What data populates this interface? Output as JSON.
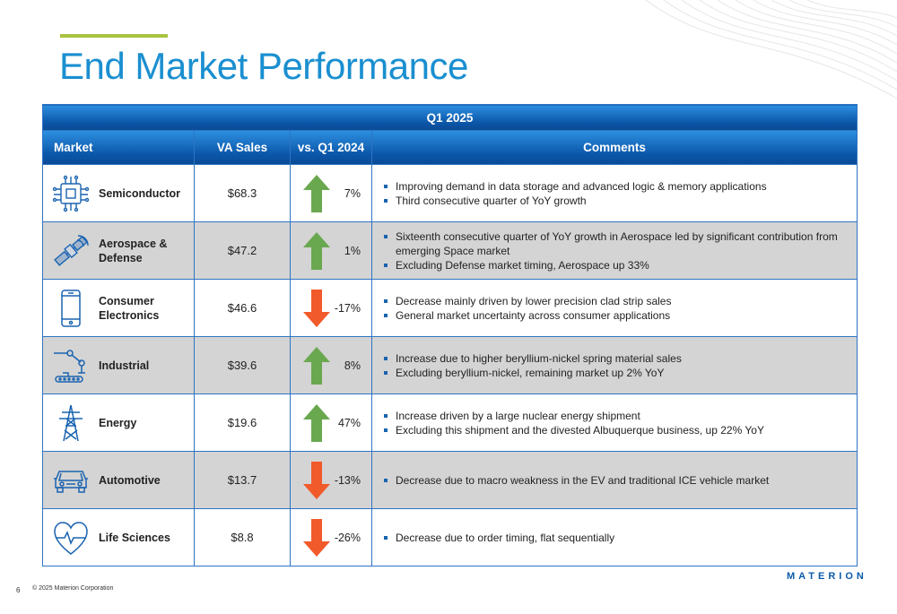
{
  "title": "End Market Performance",
  "table": {
    "period": "Q1 2025",
    "headers": {
      "market": "Market",
      "sales": "VA Sales",
      "vs": "vs. Q1 2024",
      "comments": "Comments"
    },
    "rows": [
      {
        "icon": "chip-icon",
        "market": "Semiconductor",
        "sales": "$68.3",
        "trend": "up",
        "pct": "7%",
        "comments": [
          "Improving demand in data storage and advanced logic & memory applications",
          "Third consecutive quarter of YoY growth"
        ]
      },
      {
        "icon": "satellite-icon",
        "market": "Aerospace & Defense",
        "sales": "$47.2",
        "trend": "up",
        "pct": "1%",
        "comments": [
          "Sixteenth consecutive quarter of YoY growth in Aerospace led by significant contribution from emerging Space market",
          "Excluding Defense market timing, Aerospace up 33%"
        ]
      },
      {
        "icon": "phone-icon",
        "market": "Consumer Electronics",
        "sales": "$46.6",
        "trend": "down",
        "pct": "-17%",
        "comments": [
          "Decrease mainly driven by lower precision clad strip sales",
          "General market uncertainty across consumer applications"
        ]
      },
      {
        "icon": "robot-arm-icon",
        "market": "Industrial",
        "sales": "$39.6",
        "trend": "up",
        "pct": "8%",
        "comments": [
          "Increase due to higher beryllium-nickel spring material sales",
          "Excluding beryllium-nickel, remaining market up 2% YoY"
        ]
      },
      {
        "icon": "power-tower-icon",
        "market": "Energy",
        "sales": "$19.6",
        "trend": "up",
        "pct": "47%",
        "comments": [
          "Increase driven by a large nuclear energy shipment",
          "Excluding this shipment and the divested Albuquerque business, up 22% YoY"
        ]
      },
      {
        "icon": "car-icon",
        "market": "Automotive",
        "sales": "$13.7",
        "trend": "down",
        "pct": "-13%",
        "comments": [
          "Decrease due to macro weakness in the EV and traditional ICE vehicle market"
        ]
      },
      {
        "icon": "heart-pulse-icon",
        "market": "Life Sciences",
        "sales": "$8.8",
        "trend": "down",
        "pct": "-26%",
        "comments": [
          "Decrease due to order timing, flat sequentially"
        ]
      }
    ]
  },
  "colors": {
    "up": "#6aa84f",
    "down": "#f15a2b",
    "accent": "#1a8fd0",
    "bar": "#a9c23f"
  },
  "footer": {
    "page": "6",
    "copyright": "© 2025 Materion Corporation",
    "logo": "MATERION"
  }
}
